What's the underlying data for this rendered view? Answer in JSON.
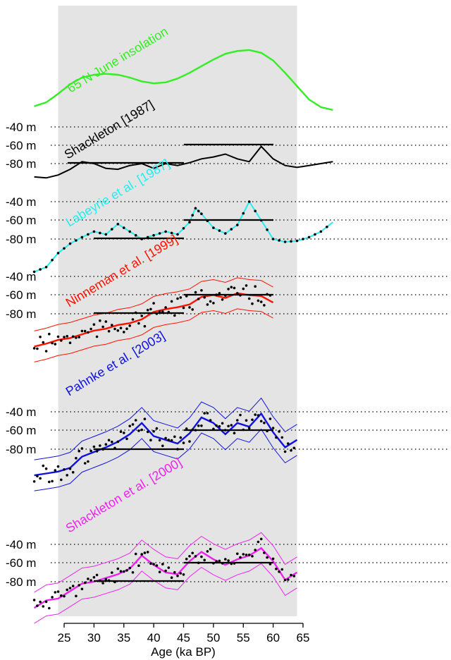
{
  "chart_data": {
    "type": "line",
    "title": "",
    "xlabel": "Age (ka BP)",
    "xlim": [
      20,
      70
    ],
    "xticks": [
      25,
      30,
      35,
      40,
      45,
      50,
      55,
      60,
      65
    ],
    "shaded_interval": [
      24,
      64
    ],
    "reference_levels": [
      "-40 m",
      "-60 m",
      "-80 m"
    ],
    "grid": false,
    "legend": "none (series labels drawn on curves)",
    "colors": {
      "insolation": "#33ee22",
      "shackleton1987": "#000000",
      "labeyrie": "#22eeee",
      "ninneman": "#ff1100",
      "pahnke": "#1111dd",
      "shackleton2000": "#ee22ee",
      "shading": "#e4e4e4"
    },
    "series": [
      {
        "name": "65 N June insolation",
        "color": "#33ee22",
        "x": [
          20,
          22,
          24,
          26,
          28,
          30,
          32,
          34,
          36,
          38,
          40,
          42,
          44,
          46,
          48,
          50,
          52,
          54,
          56,
          58,
          60,
          62,
          64,
          66,
          68,
          70
        ],
        "y": [
          7,
          11,
          20,
          30,
          37,
          40,
          41,
          40,
          37,
          33,
          31,
          32,
          36,
          42,
          49,
          56,
          62,
          65,
          66,
          63,
          55,
          42,
          28,
          14,
          6,
          3
        ]
      },
      {
        "name": "Shackleton [1987]",
        "color": "#000000",
        "x": [
          20,
          22,
          24,
          26,
          28,
          30,
          32,
          34,
          36,
          38,
          40,
          42,
          44,
          46,
          48,
          50,
          52,
          54,
          56,
          58,
          60,
          62,
          64,
          66,
          68,
          70
        ],
        "y": [
          -94,
          -95,
          -92,
          -86,
          -78,
          -80,
          -85,
          -86,
          -82,
          -80,
          -85,
          -80,
          -82,
          -79,
          -75,
          -73,
          -70,
          -75,
          -78,
          -62,
          -75,
          -82,
          -84,
          -82,
          -80,
          -78
        ]
      },
      {
        "name": "Labeyrie et al. [1987]",
        "color": "#22eeee",
        "x": [
          20,
          22,
          24,
          26,
          28,
          30,
          32,
          34,
          36,
          38,
          40,
          42,
          44,
          46,
          47,
          48,
          50,
          52,
          54,
          56,
          58,
          60,
          62,
          64,
          66,
          68,
          70
        ],
        "y": [
          -115,
          -110,
          -95,
          -85,
          -78,
          -72,
          -75,
          -64,
          -72,
          -80,
          -76,
          -72,
          -75,
          -62,
          -47,
          -53,
          -68,
          -74,
          -65,
          -40,
          -60,
          -80,
          -83,
          -82,
          -78,
          -72,
          -62
        ]
      },
      {
        "name": "Ninneman et al. [1999]",
        "color": "#ff1100",
        "x": [
          20,
          22,
          24,
          26,
          28,
          30,
          32,
          34,
          36,
          38,
          40,
          42,
          44,
          46,
          48,
          50,
          52,
          54,
          56,
          58,
          60
        ],
        "y": [
          -115,
          -112,
          -108,
          -106,
          -102,
          -98,
          -96,
          -92,
          -90,
          -86,
          -78,
          -75,
          -73,
          -70,
          -62,
          -60,
          -63,
          -58,
          -60,
          -61,
          -68
        ]
      },
      {
        "name": "Pahnke et al. [2003]",
        "color": "#1111dd",
        "x": [
          20,
          22,
          24,
          26,
          28,
          30,
          32,
          34,
          36,
          38,
          40,
          42,
          44,
          46,
          48,
          50,
          52,
          54,
          56,
          58,
          60,
          62,
          64
        ],
        "y": [
          -108,
          -106,
          -104,
          -100,
          -88,
          -83,
          -78,
          -72,
          -64,
          -52,
          -66,
          -70,
          -74,
          -63,
          -46,
          -52,
          -64,
          -52,
          -56,
          -42,
          -62,
          -78,
          -70
        ]
      },
      {
        "name": "Shackleton et al. [2000]",
        "color": "#ee22ee",
        "x": [
          20,
          22,
          24,
          26,
          28,
          30,
          32,
          34,
          36,
          38,
          40,
          42,
          44,
          46,
          48,
          50,
          52,
          54,
          56,
          58,
          60,
          62,
          64
        ],
        "y": [
          -108,
          -100,
          -98,
          -90,
          -82,
          -80,
          -76,
          -72,
          -66,
          -52,
          -62,
          -70,
          -72,
          -58,
          -48,
          -56,
          -62,
          -56,
          -52,
          -44,
          -58,
          -78,
          -70
        ]
      }
    ]
  }
}
